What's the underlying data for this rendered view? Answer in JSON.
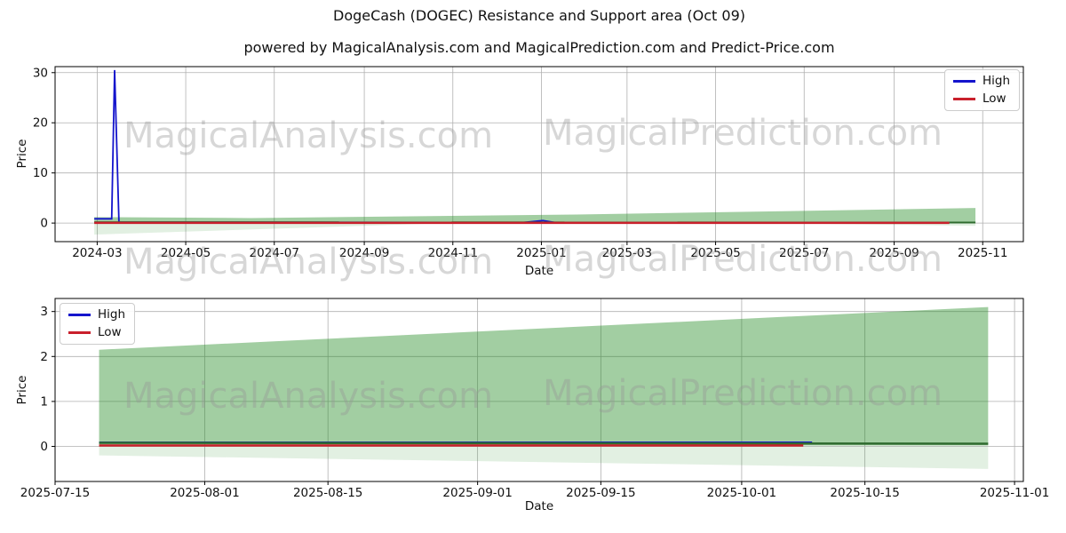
{
  "figure": {
    "title": "DogeCash (DOGEC) Resistance and Support area (Oct 09)",
    "subtitle": "powered by MagicalAnalysis.com and MagicalPrediction.com and Predict-Price.com",
    "watermarks": [
      "MagicalAnalysis.com",
      "MagicalPrediction.com"
    ]
  },
  "legend": {
    "high": "High",
    "low": "Low"
  },
  "colors": {
    "high_line": "#1414cc",
    "low_line": "#c9202c",
    "guide_line": "#2f6b2f",
    "resistance_band": "rgba(34,139,34,0.42)",
    "support_band": "rgba(34,139,34,0.13)",
    "grid": "#b0b0b0",
    "spine": "#000000"
  },
  "chart_data": [
    {
      "type": "line",
      "title": "",
      "xlabel": "Date",
      "ylabel": "Price",
      "grid": true,
      "legend": {
        "entries": [
          "High",
          "Low"
        ],
        "loc": "upper right"
      },
      "xlim": [
        "2024-02-01",
        "2025-11-29"
      ],
      "ylim": [
        -3.7,
        31.2
      ],
      "yticks": [
        0,
        10,
        20,
        30
      ],
      "xticks": [
        {
          "date": "2024-03-01",
          "label": "2024-03"
        },
        {
          "date": "2024-05-01",
          "label": "2024-05"
        },
        {
          "date": "2024-07-01",
          "label": "2024-07"
        },
        {
          "date": "2024-09-01",
          "label": "2024-09"
        },
        {
          "date": "2024-11-01",
          "label": "2024-11"
        },
        {
          "date": "2025-01-01",
          "label": "2025-01"
        },
        {
          "date": "2025-03-01",
          "label": "2025-03"
        },
        {
          "date": "2025-05-01",
          "label": "2025-05"
        },
        {
          "date": "2025-07-01",
          "label": "2025-07"
        },
        {
          "date": "2025-09-01",
          "label": "2025-09"
        },
        {
          "date": "2025-11-01",
          "label": "2025-11"
        }
      ],
      "bands": [
        {
          "name": "resistance-area",
          "colorKey": "resistance_band",
          "top": [
            [
              "2024-02-28",
              1.2
            ],
            [
              "2024-06-15",
              1.0
            ],
            [
              "2025-01-25",
              1.7
            ],
            [
              "2025-10-27",
              3.0
            ]
          ],
          "bottom": [
            [
              "2024-02-28",
              0.02
            ],
            [
              "2025-10-27",
              0.02
            ]
          ]
        },
        {
          "name": "support-area",
          "colorKey": "support_band",
          "top": [
            [
              "2024-02-28",
              0.0
            ],
            [
              "2025-10-27",
              0.0
            ]
          ],
          "bottom": [
            [
              "2024-02-28",
              -2.3
            ],
            [
              "2024-10-20",
              -0.08
            ],
            [
              "2025-07-01",
              -0.12
            ],
            [
              "2025-10-27",
              -0.55
            ]
          ]
        }
      ],
      "series": [
        {
          "name": "High",
          "colorKey": "high_line",
          "width": 1.8,
          "points": [
            [
              "2024-02-28",
              0.85
            ],
            [
              "2024-03-11",
              0.85
            ],
            [
              "2024-03-13",
              30.5
            ],
            [
              "2024-03-16",
              0.2
            ],
            [
              "2024-12-20",
              0.12
            ],
            [
              "2025-01-02",
              0.5
            ],
            [
              "2025-01-10",
              0.12
            ],
            [
              "2025-10-06",
              0.12
            ]
          ]
        },
        {
          "name": "HighGuide",
          "colorKey": "guide_line",
          "width": 2,
          "points": [
            [
              "2024-02-28",
              0.18
            ],
            [
              "2025-10-27",
              0.1
            ]
          ]
        },
        {
          "name": "Low",
          "colorKey": "low_line",
          "width": 2.5,
          "points": [
            [
              "2024-02-28",
              0.05
            ],
            [
              "2025-10-09",
              0.05
            ]
          ]
        }
      ]
    },
    {
      "type": "line",
      "title": "",
      "xlabel": "Date",
      "ylabel": "Price",
      "grid": true,
      "legend": {
        "entries": [
          "High",
          "Low"
        ],
        "loc": "upper left"
      },
      "xlim": [
        "2025-07-15",
        "2025-11-02"
      ],
      "ylim": [
        -0.78,
        3.29
      ],
      "yticks": [
        0,
        1,
        2,
        3
      ],
      "xticks": [
        {
          "date": "2025-07-15",
          "label": "2025-07-15"
        },
        {
          "date": "2025-08-01",
          "label": "2025-08-01"
        },
        {
          "date": "2025-08-15",
          "label": "2025-08-15"
        },
        {
          "date": "2025-09-01",
          "label": "2025-09-01"
        },
        {
          "date": "2025-09-15",
          "label": "2025-09-15"
        },
        {
          "date": "2025-10-01",
          "label": "2025-10-01"
        },
        {
          "date": "2025-10-15",
          "label": "2025-10-15"
        },
        {
          "date": "2025-11-01",
          "label": "2025-11-01"
        }
      ],
      "bands": [
        {
          "name": "resistance-area",
          "colorKey": "resistance_band",
          "top": [
            [
              "2025-07-20",
              2.15
            ],
            [
              "2025-10-29",
              3.1
            ]
          ],
          "bottom": [
            [
              "2025-07-20",
              0.02
            ],
            [
              "2025-10-29",
              0.02
            ]
          ]
        },
        {
          "name": "support-area",
          "colorKey": "support_band",
          "top": [
            [
              "2025-07-20",
              0.0
            ],
            [
              "2025-10-29",
              0.0
            ]
          ],
          "bottom": [
            [
              "2025-07-20",
              -0.2
            ],
            [
              "2025-10-29",
              -0.5
            ]
          ]
        }
      ],
      "series": [
        {
          "name": "High",
          "colorKey": "high_line",
          "width": 2,
          "points": [
            [
              "2025-07-20",
              0.09
            ],
            [
              "2025-10-09",
              0.09
            ]
          ]
        },
        {
          "name": "HighGuide",
          "colorKey": "guide_line",
          "width": 2.5,
          "points": [
            [
              "2025-07-20",
              0.08
            ],
            [
              "2025-10-29",
              0.06
            ]
          ]
        },
        {
          "name": "Low",
          "colorKey": "low_line",
          "width": 2.5,
          "points": [
            [
              "2025-07-20",
              0.02
            ],
            [
              "2025-10-08",
              0.02
            ]
          ]
        }
      ]
    }
  ]
}
